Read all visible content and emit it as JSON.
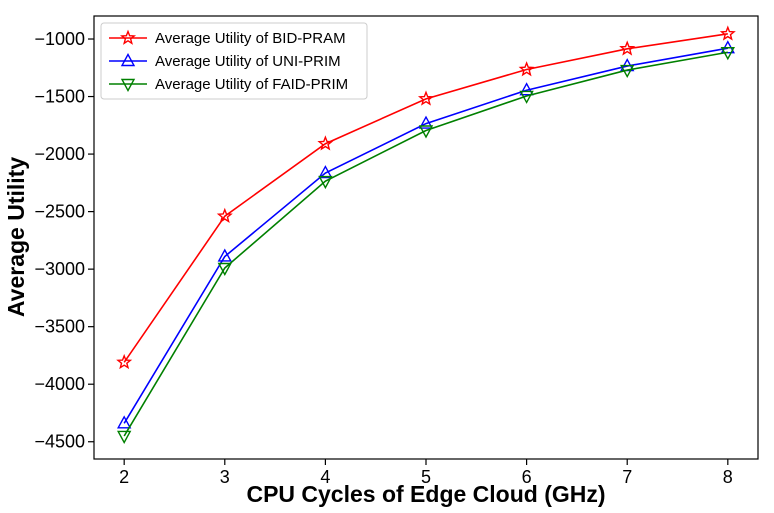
{
  "chart_data": {
    "type": "line",
    "title": "",
    "xlabel": "CPU Cycles of Edge Cloud (GHz)",
    "ylabel": "Average Utility",
    "x": [
      2,
      3,
      4,
      5,
      6,
      7,
      8
    ],
    "xlim": [
      1.7,
      8.3
    ],
    "ylim": [
      -4650,
      -800
    ],
    "xticks": [
      "2",
      "3",
      "4",
      "5",
      "6",
      "7",
      "8"
    ],
    "yticks": [
      "−1000",
      "−1500",
      "−2000",
      "−2500",
      "−3000",
      "−3500",
      "−4000",
      "−4500"
    ],
    "ytick_values": [
      -1000,
      -1500,
      -2000,
      -2500,
      -3000,
      -3500,
      -4000,
      -4500
    ],
    "grid": false,
    "legend_position": "top-left",
    "series": [
      {
        "name": "Average Utility of BID-PRAM",
        "color": "#ff0000",
        "marker": "star",
        "values": [
          -3810,
          -2540,
          -1910,
          -1520,
          -1265,
          -1085,
          -955
        ]
      },
      {
        "name": "Average Utility of UNI-PRIM",
        "color": "#0000ff",
        "marker": "triangle-up",
        "values": [
          -4340,
          -2890,
          -2165,
          -1735,
          -1445,
          -1235,
          -1080
        ]
      },
      {
        "name": "Average Utility of FAID-PRIM",
        "color": "#008000",
        "marker": "triangle-down",
        "values": [
          -4450,
          -2990,
          -2235,
          -1795,
          -1495,
          -1270,
          -1115
        ]
      }
    ]
  }
}
